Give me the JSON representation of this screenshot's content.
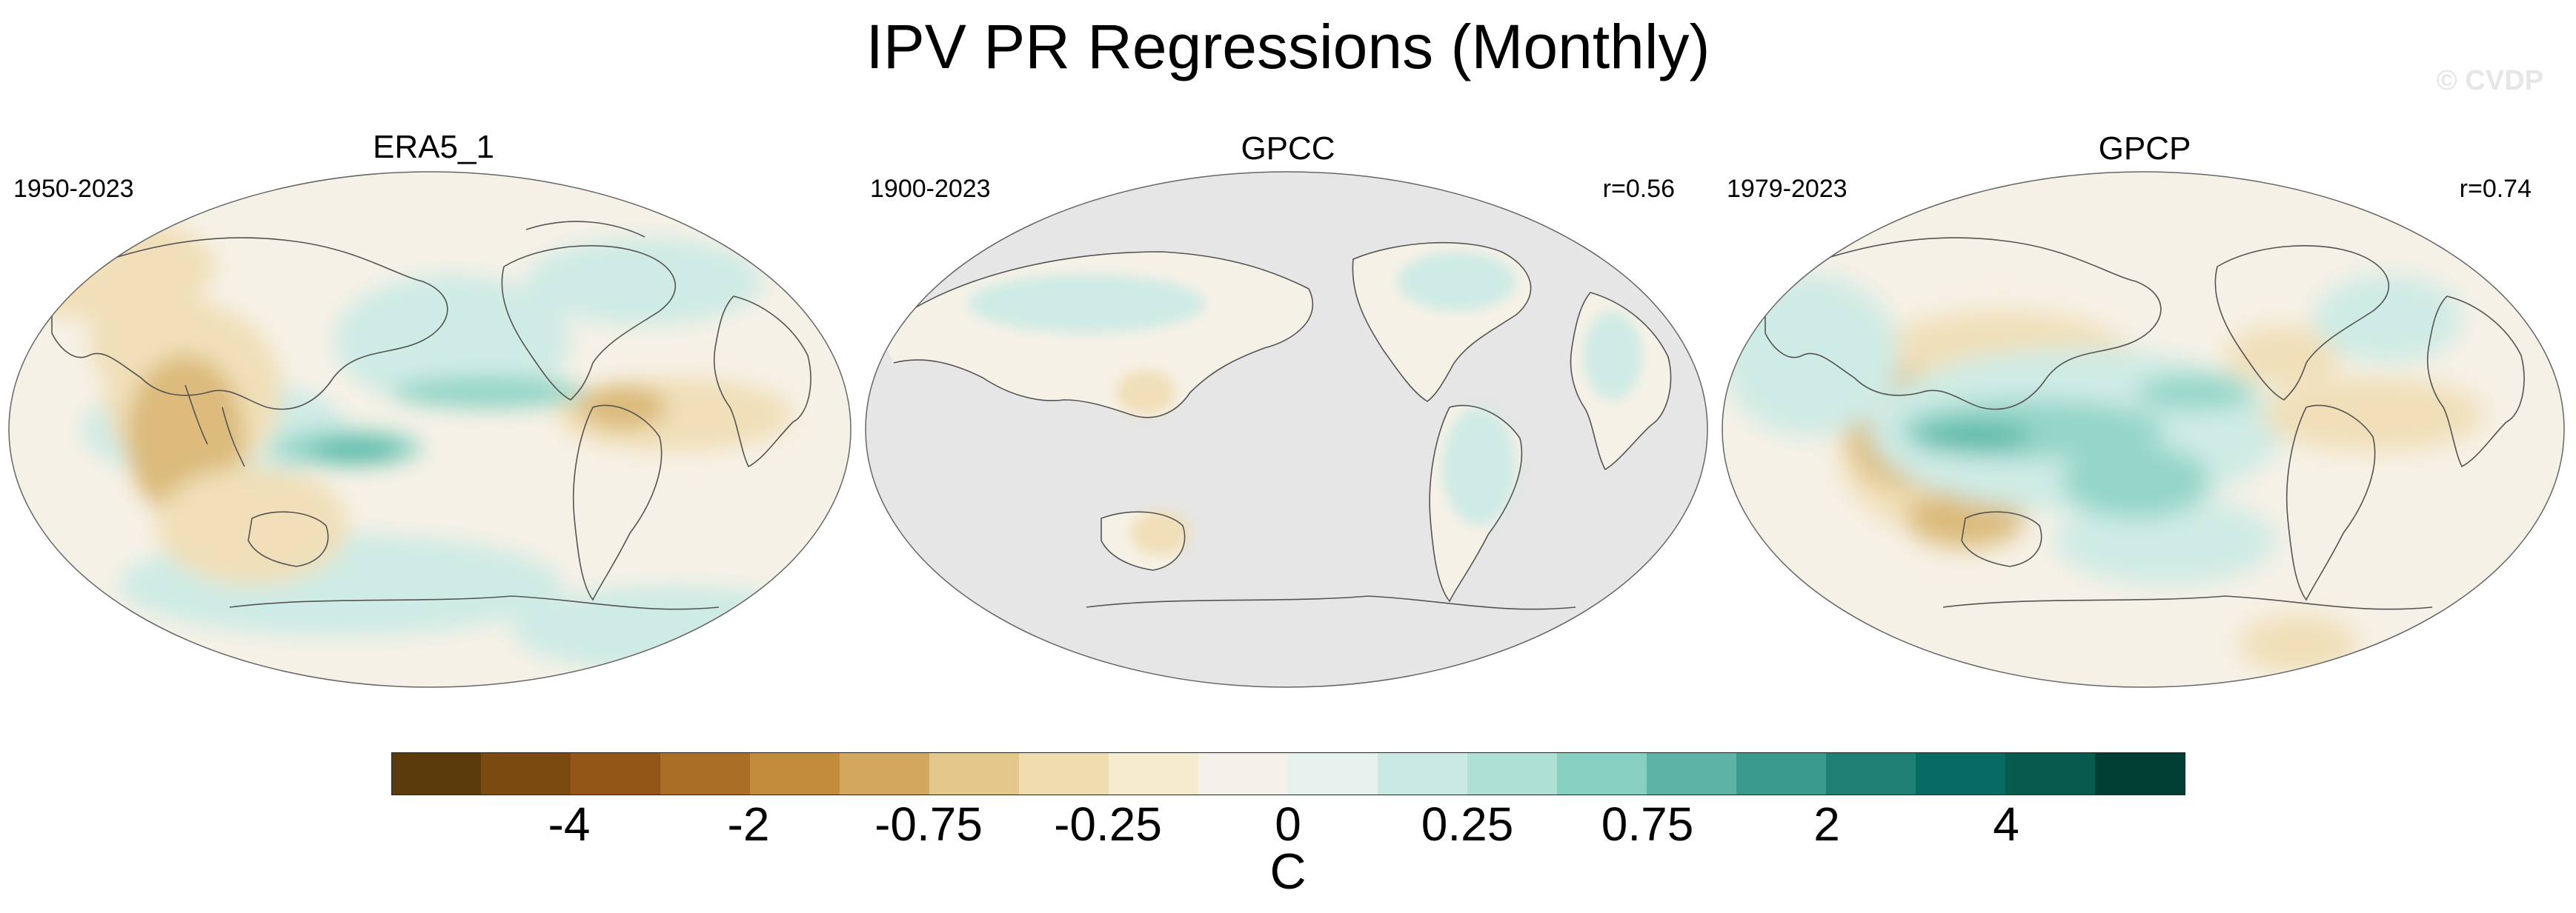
{
  "title": "IPV PR Regressions (Monthly)",
  "watermark": "© CVDP",
  "panels": [
    {
      "name": "ERA5_1",
      "period": "1950-2023",
      "corr": ""
    },
    {
      "name": "GPCC",
      "period": "1900-2023",
      "corr": "r=0.56"
    },
    {
      "name": "GPCP",
      "period": "1979-2023",
      "corr": "r=0.74"
    }
  ],
  "colorbar": {
    "colors": [
      "#5b3a0c",
      "#7a4a10",
      "#935616",
      "#ab6e26",
      "#c38c3c",
      "#d3a85e",
      "#e3c78b",
      "#efdcaf",
      "#f5ebcf",
      "#f4f1ea",
      "#e7f2ef",
      "#cbe9e3",
      "#aee0d6",
      "#88d0c2",
      "#5db3a5",
      "#3a9a8e",
      "#1f8076",
      "#076b61",
      "#065a4e",
      "#003d33"
    ],
    "labels": [
      "-4",
      "-2",
      "-0.75",
      "-0.25",
      "0",
      "0.25",
      "0.75",
      "2",
      "4"
    ],
    "units": "C"
  },
  "colors": {
    "ocean_base": "#f6f1e6",
    "land_gray": "#e6e6e6",
    "teal_light": "#cfebe5",
    "teal_mid": "#94d6c8",
    "teal_dark": "#5cbaa9",
    "brown_light": "#f0dfb8",
    "brown_mid": "#dcbb7c",
    "coast": "#555555"
  }
}
